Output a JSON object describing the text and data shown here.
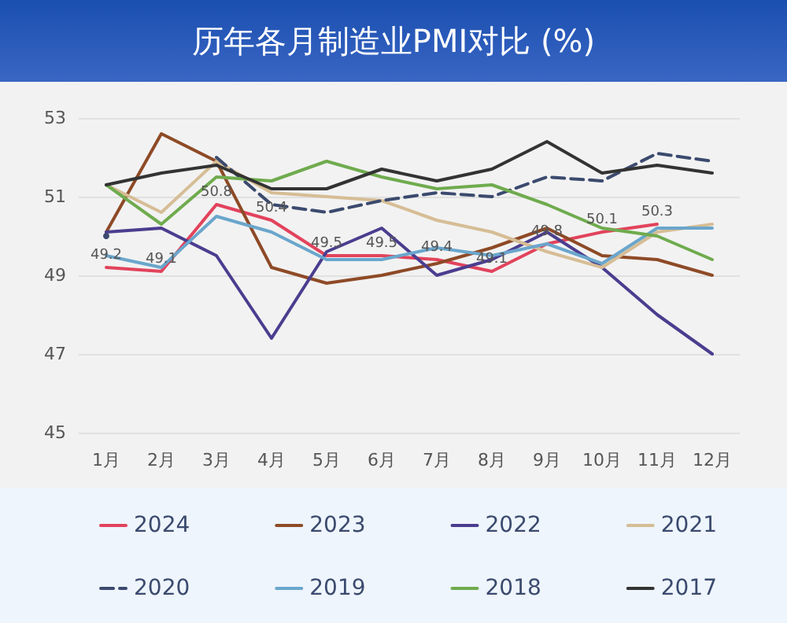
{
  "chart_data": {
    "type": "line",
    "title": "历年各月制造业PMI对比 (%)",
    "categories": [
      "1月",
      "2月",
      "3月",
      "4月",
      "5月",
      "6月",
      "7月",
      "8月",
      "9月",
      "10月",
      "11月",
      "12月"
    ],
    "ylim": [
      45,
      53
    ],
    "yticks": [
      45,
      47,
      49,
      51,
      53
    ],
    "grid": "y",
    "legend": "bottom",
    "marker": "none",
    "line_style": "solid",
    "series": [
      {
        "name": "2024",
        "color": "#e2435c",
        "values": [
          49.2,
          49.1,
          50.8,
          50.4,
          49.5,
          49.5,
          49.4,
          49.1,
          49.8,
          50.1,
          50.3,
          null
        ],
        "value_labels": [
          "49.2",
          "49.1",
          "50.8",
          "50.4",
          "49.5",
          "49.5",
          "49.4",
          "49.1",
          "49.8",
          "50.1",
          "50.3",
          null
        ]
      },
      {
        "name": "2023",
        "color": "#8e4a26",
        "values": [
          50.1,
          52.6,
          51.9,
          49.2,
          48.8,
          49.0,
          49.3,
          49.7,
          50.2,
          49.5,
          49.4,
          49.0
        ]
      },
      {
        "name": "2022",
        "color": "#4b3d8f",
        "values": [
          50.1,
          50.2,
          49.5,
          47.4,
          49.6,
          50.2,
          49.0,
          49.4,
          50.1,
          49.2,
          48.0,
          47.0
        ]
      },
      {
        "name": "2021",
        "color": "#d6bd95",
        "values": [
          51.3,
          50.6,
          51.9,
          51.1,
          51.0,
          50.9,
          50.4,
          50.1,
          49.6,
          49.2,
          50.1,
          50.3
        ]
      },
      {
        "name": "2020",
        "color": "#3b4a6e",
        "line_style": "dashed",
        "values": [
          50.0,
          null,
          52.0,
          50.8,
          50.6,
          50.9,
          51.1,
          51.0,
          51.5,
          51.4,
          52.1,
          51.9
        ]
      },
      {
        "name": "2019",
        "color": "#6aa6cc",
        "values": [
          49.5,
          49.2,
          50.5,
          50.1,
          49.4,
          49.4,
          49.7,
          49.5,
          49.8,
          49.3,
          50.2,
          50.2
        ]
      },
      {
        "name": "2018",
        "color": "#6fab4e",
        "values": [
          51.3,
          50.3,
          51.5,
          51.4,
          51.9,
          51.5,
          51.2,
          51.3,
          50.8,
          50.2,
          50.0,
          49.4
        ]
      },
      {
        "name": "2017",
        "color": "#333333",
        "values": [
          51.3,
          51.6,
          51.8,
          51.2,
          51.2,
          51.7,
          51.4,
          51.7,
          52.4,
          51.6,
          51.8,
          51.6
        ]
      }
    ]
  }
}
